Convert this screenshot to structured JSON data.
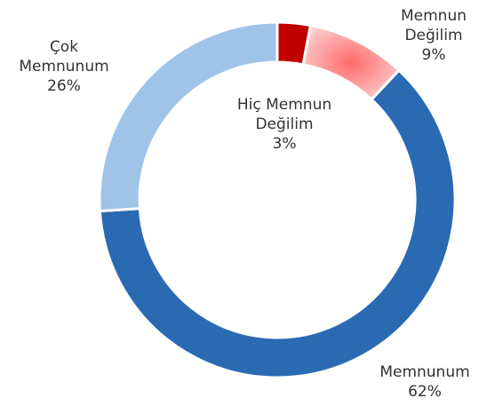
{
  "chart_data": {
    "type": "donut",
    "categories": [
      "Hiç Memnun Değilim",
      "Memnun Değilim",
      "Memnunum",
      "Çok Memnunum"
    ],
    "values": [
      3,
      9,
      62,
      26
    ],
    "value_labels": [
      "3%",
      "9%",
      "62%",
      "26%"
    ],
    "colors": [
      "#c00000",
      "#f7a3a3",
      "#2a6ab2",
      "#9fc4e8"
    ]
  }
}
